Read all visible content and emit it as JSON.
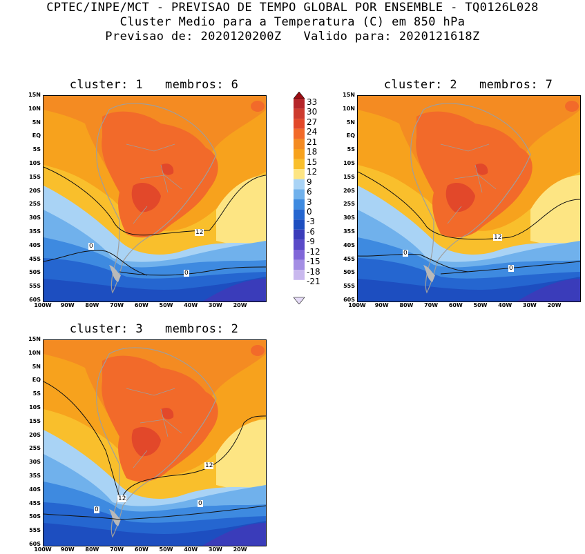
{
  "header": {
    "line1": "CPTEC/INPE/MCT - PREVISAO DE TEMPO GLOBAL POR ENSEMBLE - TQ0126L028",
    "line2": "Cluster Medio para a Temperatura (C) em 850 hPa",
    "line3": "Previsao de: 2020120200Z   Valido para: 2020121618Z"
  },
  "axes": {
    "lat_labels": [
      "15N",
      "10N",
      "5N",
      "EQ",
      "5S",
      "10S",
      "15S",
      "20S",
      "25S",
      "30S",
      "35S",
      "40S",
      "45S",
      "50S",
      "55S",
      "60S"
    ],
    "lon_labels": [
      "100W",
      "90W",
      "80W",
      "70W",
      "60W",
      "50W",
      "40W",
      "30W",
      "20W"
    ]
  },
  "panels": [
    {
      "title": "cluster: 1   membros: 6",
      "contours": [
        "12",
        "0",
        "0"
      ]
    },
    {
      "title": "cluster: 2   membros: 7",
      "contours": [
        "12",
        "0",
        "0"
      ]
    },
    {
      "title": "cluster: 3   membros: 2",
      "contours": [
        "12",
        "12",
        "0",
        "0"
      ]
    }
  ],
  "colorbar": {
    "labels": [
      "33",
      "30",
      "27",
      "24",
      "21",
      "18",
      "15",
      "12",
      "9",
      "6",
      "3",
      "0",
      "-3",
      "-6",
      "-9",
      "-12",
      "-15",
      "-18",
      "-21"
    ],
    "colors": [
      "#9b0e13",
      "#b5262a",
      "#cd3b2f",
      "#e2482a",
      "#f26a2a",
      "#f48b22",
      "#f7a21d",
      "#f9bf2c",
      "#fde583",
      "#a9d3f5",
      "#70b1ec",
      "#3e8ae0",
      "#2566d0",
      "#1d4ec0",
      "#3a3cba",
      "#5a4ac8",
      "#8066d8",
      "#a48ee4",
      "#c9b8ee",
      "#e6dcf7"
    ]
  }
}
